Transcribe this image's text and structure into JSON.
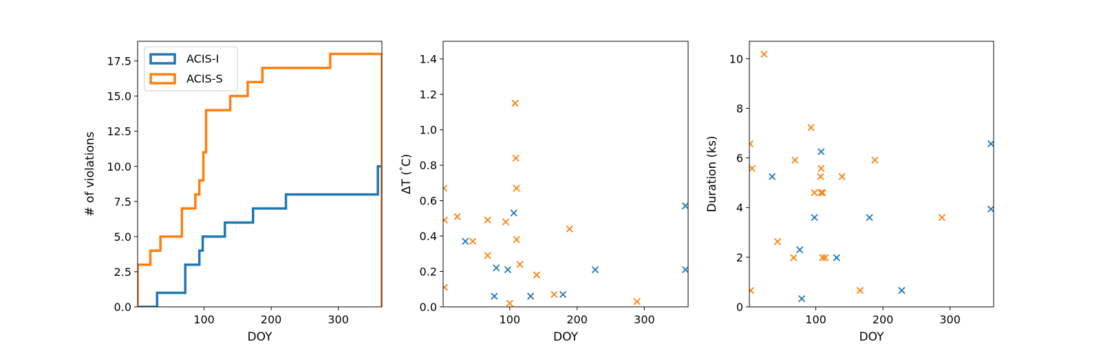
{
  "colors": {
    "acis_i": "#1f77b4",
    "acis_s": "#ff7f0e"
  },
  "chart_data": [
    {
      "type": "line",
      "style": "step",
      "xlabel": "DOY",
      "ylabel": "# of violations",
      "xlim": [
        1,
        365
      ],
      "ylim": [
        0,
        18.9
      ],
      "xticks": [
        100,
        200,
        300
      ],
      "yticks": [
        0.0,
        2.5,
        5.0,
        7.5,
        10.0,
        12.5,
        15.0,
        17.5
      ],
      "ytick_labels": [
        "0.0",
        "2.5",
        "5.0",
        "7.5",
        "10.0",
        "12.5",
        "15.0",
        "17.5"
      ],
      "legend": {
        "position": "top-left",
        "entries": [
          "ACIS-I",
          "ACIS-S"
        ]
      },
      "series": [
        {
          "name": "ACIS-I",
          "color_key": "acis_i",
          "x": [
            1,
            30,
            72,
            93,
            98,
            131,
            173,
            222,
            359,
            365
          ],
          "y": [
            0,
            1,
            3,
            4,
            5,
            6,
            7,
            8,
            10,
            0
          ]
        },
        {
          "name": "ACIS-S",
          "color_key": "acis_s",
          "x": [
            1,
            20,
            35,
            67,
            87,
            93,
            99,
            103,
            108,
            139,
            165,
            187,
            288,
            365
          ],
          "y": [
            3,
            4,
            5,
            7,
            8,
            9,
            11,
            14,
            14,
            15,
            16,
            17,
            18,
            0
          ]
        }
      ]
    },
    {
      "type": "scatter",
      "marker": "x",
      "xlabel": "DOY",
      "ylabel": "ΔT (°C)",
      "ylabel_parts": {
        "delta": "Δ",
        "t": "T (",
        "degree": "°",
        "unit": "C)"
      },
      "xlim": [
        1,
        365
      ],
      "ylim": [
        0,
        1.5
      ],
      "xticks": [
        100,
        200,
        300
      ],
      "yticks": [
        0.0,
        0.2,
        0.4,
        0.6,
        0.8,
        1.0,
        1.2,
        1.4
      ],
      "ytick_labels": [
        "0.0",
        "0.2",
        "0.4",
        "0.6",
        "0.8",
        "1.0",
        "1.2",
        "1.4"
      ],
      "series": [
        {
          "name": "ACIS-I",
          "color_key": "acis_i",
          "x": [
            34,
            77,
            80,
            97,
            106,
            131,
            179,
            227,
            361,
            361
          ],
          "y": [
            0.37,
            0.06,
            0.22,
            0.21,
            0.53,
            0.06,
            0.07,
            0.21,
            0.57,
            0.21
          ]
        },
        {
          "name": "ACIS-S",
          "color_key": "acis_s",
          "x": [
            2,
            3,
            3,
            22,
            45,
            67,
            67,
            94,
            100,
            108,
            109,
            110,
            110,
            115,
            140,
            166,
            189,
            289
          ],
          "y": [
            0.67,
            0.49,
            0.11,
            0.51,
            0.37,
            0.49,
            0.29,
            0.48,
            0.02,
            1.15,
            0.84,
            0.38,
            0.67,
            0.24,
            0.18,
            0.07,
            0.44,
            0.03
          ]
        }
      ]
    },
    {
      "type": "scatter",
      "marker": "x",
      "xlabel": "DOY",
      "ylabel": "Duration (ks)",
      "xlim": [
        1,
        365
      ],
      "ylim": [
        0,
        10.7
      ],
      "xticks": [
        100,
        200,
        300
      ],
      "yticks": [
        0,
        2,
        4,
        6,
        8,
        10
      ],
      "ytick_labels": [
        "0",
        "2",
        "4",
        "6",
        "8",
        "10"
      ],
      "series": [
        {
          "name": "ACIS-I",
          "color_key": "acis_i",
          "x": [
            35,
            76,
            79,
            98,
            108,
            131,
            180,
            228,
            361,
            361
          ],
          "y": [
            5.25,
            2.3,
            0.33,
            3.6,
            6.25,
            1.98,
            3.6,
            0.66,
            6.57,
            3.94
          ]
        },
        {
          "name": "ACIS-S",
          "color_key": "acis_s",
          "x": [
            2,
            3,
            5,
            23,
            43,
            67,
            69,
            93,
            98,
            107,
            108,
            108,
            110,
            110,
            114,
            139,
            166,
            188,
            288
          ],
          "y": [
            6.57,
            0.66,
            5.58,
            10.18,
            2.63,
            1.98,
            5.91,
            7.22,
            4.6,
            5.25,
            4.6,
            5.58,
            1.98,
            4.6,
            1.98,
            5.25,
            0.66,
            5.91,
            3.6
          ]
        }
      ]
    }
  ]
}
